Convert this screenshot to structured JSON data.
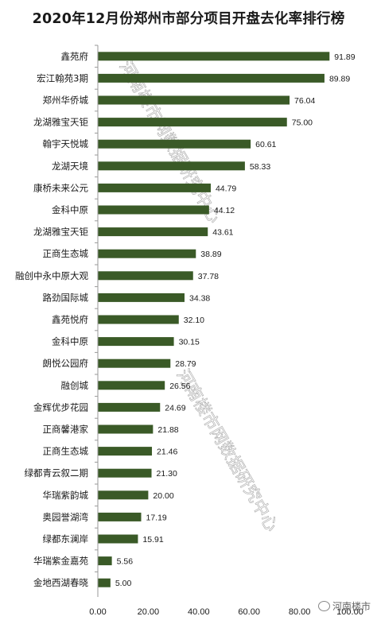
{
  "title": "2020年12月份郑州市部分项目开盘去化率排行榜",
  "watermark": "河南楼市网数据研究中心",
  "logo_text": "河南楼市",
  "chart_data": {
    "type": "bar",
    "orientation": "horizontal",
    "title": "2020年12月份郑州市部分项目开盘去化率排行榜",
    "categories": [
      "鑫苑府",
      "宏江翰苑3期",
      "郑州华侨城",
      "龙湖雅宝天钜",
      "翰宇天悦城",
      "龙湖天境",
      "康桥未来公元",
      "金科中原",
      "龙湖雅宝天钜",
      "正商生态城",
      "融创中永中原大观",
      "路劲国际城",
      "鑫苑悦府",
      "金科中原",
      "朗悦公园府",
      "融创城",
      "金辉优步花园",
      "正商馨港家",
      "正商生态城",
      "绿都青云叙二期",
      "华瑞紫韵城",
      "奥园誉湖湾",
      "绿都东澜岸",
      "华瑞紫金嘉苑",
      "金地西湖春晓"
    ],
    "values": [
      91.89,
      89.89,
      76.04,
      75.0,
      60.61,
      58.33,
      44.79,
      44.12,
      43.61,
      38.89,
      37.78,
      34.38,
      32.1,
      30.15,
      28.79,
      26.56,
      24.69,
      21.88,
      21.46,
      21.3,
      20.0,
      17.19,
      15.91,
      5.56,
      5.0
    ],
    "value_labels": [
      "91.89",
      "89.89",
      "76.04",
      "75.00",
      "60.61",
      "58.33",
      "44.79",
      "44.12",
      "43.61",
      "38.89",
      "37.78",
      "34.38",
      "32.10",
      "30.15",
      "28.79",
      "26.56",
      "24.69",
      "21.88",
      "21.46",
      "21.30",
      "20.00",
      "17.19",
      "15.91",
      "5.56",
      "5.00"
    ],
    "xlim": [
      0,
      100
    ],
    "xticks": [
      "0.00",
      "20.00",
      "40.00",
      "60.00",
      "80.00",
      "100.00"
    ],
    "xtick_values": [
      0,
      20,
      40,
      60,
      80,
      100
    ],
    "xlabel": "",
    "ylabel": "",
    "grid": false,
    "legend": "none",
    "bar_color": "#3a5a27"
  }
}
